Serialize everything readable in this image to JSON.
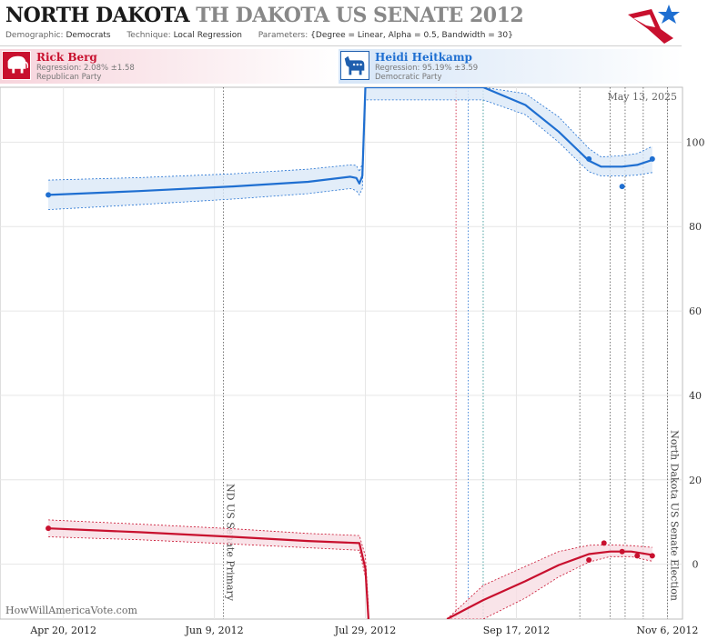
{
  "header": {
    "title_state": "NORTH DAKOTA",
    "title_race": "TH DAKOTA US SENATE 2012",
    "demographic_label": "Demographic:",
    "demographic_value": "Democrats",
    "technique_label": "Technique:",
    "technique_value": "Local Regression",
    "parameters_label": "Parameters:",
    "parameters_value": "{Degree = Linear, Alpha = 0.5, Bandwidth = 30}"
  },
  "candidates": {
    "rep": {
      "name": "Rick Berg",
      "regression": "Regression: 2.08% ±1.58",
      "party": "Republican Party",
      "color": "#c8102e"
    },
    "dem": {
      "name": "Heidi Heitkamp",
      "regression": "Regression: 95.19% ±3.59",
      "party": "Democratic Party",
      "color": "#1f6fd1"
    }
  },
  "chart_data": {
    "type": "line",
    "date_label": "May 13, 2025",
    "credit": "HowWillAmericaVote.com",
    "x_tick_labels": [
      "Apr 20, 2012",
      "Jun 9, 2012",
      "Jul 29, 2012",
      "Sep 17, 2012",
      "Nov 6, 2012"
    ],
    "x_ticks": [
      "2012-04-20",
      "2012-06-09",
      "2012-07-29",
      "2012-09-17",
      "2012-11-06"
    ],
    "xlim": [
      "2012-03-30",
      "2012-11-11"
    ],
    "y_ticks": [
      0,
      20,
      40,
      60,
      80,
      100
    ],
    "ylim": [
      -13,
      113
    ],
    "y_axis_side": "right",
    "grid": true,
    "events": [
      {
        "date": "2012-06-12",
        "label": "ND US Senate Primary"
      },
      {
        "date": "2012-11-06",
        "label": "North Dakota US Senate Election"
      }
    ],
    "poll_lines": [
      {
        "date": "2012-08-28",
        "color": "#c8102e"
      },
      {
        "date": "2012-09-01",
        "color": "#1f6fd1"
      },
      {
        "date": "2012-09-06",
        "color": "#1f8a8a"
      },
      {
        "date": "2012-10-08",
        "color": "#555555"
      },
      {
        "date": "2012-10-18",
        "color": "#555555"
      },
      {
        "date": "2012-10-23",
        "color": "#555555"
      },
      {
        "date": "2012-10-29",
        "color": "#555555"
      }
    ],
    "series": [
      {
        "name": "Heidi Heitkamp",
        "color": "#1f6fd1",
        "band_color": "#dbe9f8",
        "points": [
          {
            "x": "2012-04-15",
            "y": 87.5
          },
          {
            "x": "2012-10-11",
            "y": 96
          },
          {
            "x": "2012-10-22",
            "y": 89.5
          },
          {
            "x": "2012-11-01",
            "y": 96
          }
        ],
        "fit": [
          {
            "x": "2012-04-15",
            "y": 87.5,
            "lo": 84,
            "hi": 91
          },
          {
            "x": "2012-05-15",
            "y": 88.4,
            "lo": 85.2,
            "hi": 91.6
          },
          {
            "x": "2012-06-15",
            "y": 89.5,
            "lo": 86.5,
            "hi": 92.5
          },
          {
            "x": "2012-07-10",
            "y": 90.6,
            "lo": 87.8,
            "hi": 93.6
          },
          {
            "x": "2012-07-24",
            "y": 91.8,
            "lo": 89,
            "hi": 94.6
          },
          {
            "x": "2012-07-26",
            "y": 91.5,
            "lo": 88.5,
            "hi": 94.5
          },
          {
            "x": "2012-07-27",
            "y": 90.2,
            "lo": 87.5,
            "hi": 93
          },
          {
            "x": "2012-07-28",
            "y": 92,
            "lo": 89,
            "hi": 95
          },
          {
            "x": "2012-07-29",
            "y": 113,
            "lo": 110,
            "hi": 116
          },
          {
            "x": "2012-09-06",
            "y": 113,
            "lo": 110,
            "hi": 116
          },
          {
            "x": "2012-09-20",
            "y": 108.8,
            "lo": 106.5,
            "hi": 111.5
          },
          {
            "x": "2012-10-01",
            "y": 102.5,
            "lo": 100,
            "hi": 106
          },
          {
            "x": "2012-10-11",
            "y": 95.6,
            "lo": 93,
            "hi": 98.5
          },
          {
            "x": "2012-10-15",
            "y": 94.2,
            "lo": 92,
            "hi": 96.5
          },
          {
            "x": "2012-10-22",
            "y": 94.2,
            "lo": 92,
            "hi": 96.8
          },
          {
            "x": "2012-10-27",
            "y": 94.6,
            "lo": 92.2,
            "hi": 97.3
          },
          {
            "x": "2012-11-01",
            "y": 95.8,
            "lo": 92.8,
            "hi": 99
          }
        ]
      },
      {
        "name": "Rick Berg",
        "color": "#c8102e",
        "band_color": "#f8dde3",
        "points": [
          {
            "x": "2012-04-15",
            "y": 8.5
          },
          {
            "x": "2012-10-11",
            "y": 1
          },
          {
            "x": "2012-10-16",
            "y": 5
          },
          {
            "x": "2012-10-22",
            "y": 3
          },
          {
            "x": "2012-10-27",
            "y": 2
          },
          {
            "x": "2012-11-01",
            "y": 2
          }
        ],
        "fit": [
          {
            "x": "2012-04-15",
            "y": 8.5,
            "lo": 6.5,
            "hi": 10.5
          },
          {
            "x": "2012-05-15",
            "y": 7.6,
            "lo": 5.8,
            "hi": 9.5
          },
          {
            "x": "2012-06-15",
            "y": 6.5,
            "lo": 4.8,
            "hi": 8.4
          },
          {
            "x": "2012-07-10",
            "y": 5.5,
            "lo": 3.9,
            "hi": 7.3
          },
          {
            "x": "2012-07-27",
            "y": 5,
            "lo": 3.3,
            "hi": 6.8
          },
          {
            "x": "2012-07-29",
            "y": -1,
            "lo": -3,
            "hi": 2
          },
          {
            "x": "2012-07-30",
            "y": -13,
            "lo": -13,
            "hi": -10
          }
        ],
        "fit2": [
          {
            "x": "2012-08-25",
            "y": -13,
            "lo": -13,
            "hi": -13
          },
          {
            "x": "2012-09-06",
            "y": -8.5,
            "lo": -13,
            "hi": -5
          },
          {
            "x": "2012-09-20",
            "y": -4,
            "lo": -8,
            "hi": -0.5
          },
          {
            "x": "2012-10-01",
            "y": -0.2,
            "lo": -3,
            "hi": 3
          },
          {
            "x": "2012-10-11",
            "y": 2.4,
            "lo": 0.5,
            "hi": 4.5
          },
          {
            "x": "2012-10-18",
            "y": 3,
            "lo": 1.8,
            "hi": 4.6
          },
          {
            "x": "2012-10-25",
            "y": 3,
            "lo": 1.8,
            "hi": 4.4
          },
          {
            "x": "2012-11-01",
            "y": 2.2,
            "lo": 0.7,
            "hi": 4
          }
        ]
      }
    ]
  }
}
